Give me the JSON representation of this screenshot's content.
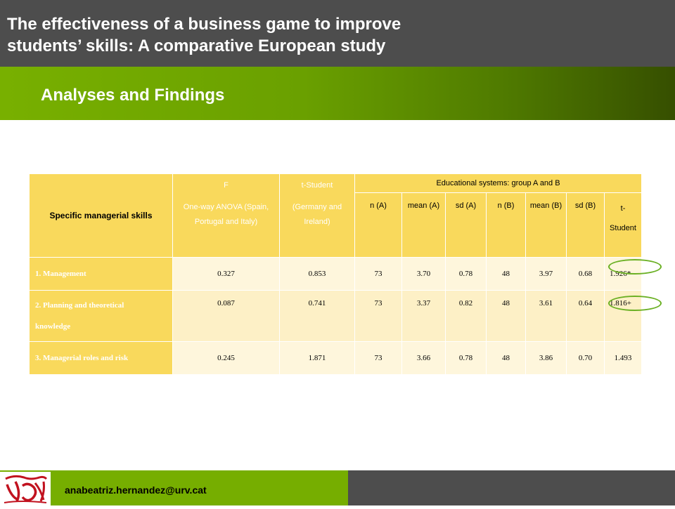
{
  "header": {
    "title_line1": "The effectiveness of a business game to improve",
    "title_line2": "students’ skills: A comparative European study",
    "subtitle": "Analyses and Findings"
  },
  "table": {
    "col_skill": "Specific managerial skills",
    "col_f_line1": "F",
    "col_f_line2": "One-way ANOVA (Spain, Portugal and Italy)",
    "col_t_line1": "t-Student",
    "col_t_line2": "(Germany and Ireland)",
    "group_header": "Educational systems: group A and B",
    "sub_headers": [
      "n (A)",
      "mean (A)",
      "sd (A)",
      "n (B)",
      "mean (B)",
      "sd (B)",
      "t-Student"
    ],
    "sub_t_line1": "t-",
    "sub_t_line2": "Student",
    "rows": [
      {
        "skill_line1": "1. Management",
        "skill_line2": "",
        "f": "0.327",
        "t": "0.853",
        "nA": "73",
        "meanA": "3.70",
        "sdA": "0.78",
        "nB": "48",
        "meanB": "3.97",
        "sdB": "0.68",
        "tStudent": "1.926*"
      },
      {
        "skill_line1": "2. Planning and theoretical",
        "skill_line2": "knowledge",
        "f": "0.087",
        "t": "0.741",
        "nA": "73",
        "meanA": "3.37",
        "sdA": "0.82",
        "nB": "48",
        "meanB": "3.61",
        "sdB": "0.64",
        "tStudent": "1.816+"
      },
      {
        "skill_line1": "3. Managerial roles and risk",
        "skill_line2": "",
        "f": "0.245",
        "t": "1.871",
        "nA": "73",
        "meanA": "3.66",
        "sdA": "0.78",
        "nB": "48",
        "meanB": "3.86",
        "sdB": "0.70",
        "tStudent": "1.493"
      }
    ]
  },
  "footer": {
    "email": "anabeatriz.hernandez@urv.cat",
    "logo_icon": "urv-logo-icon"
  },
  "colors": {
    "header_gray": "#4d4d4d",
    "accent_green": "#76ae00",
    "table_yellow": "#f9d95c",
    "highlight_ring": "#6ab023"
  }
}
